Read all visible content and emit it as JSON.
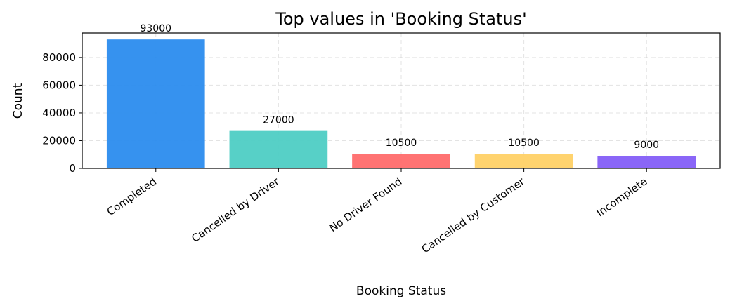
{
  "chart_data": {
    "type": "bar",
    "title": "Top values in 'Booking Status'",
    "xlabel": "Booking Status",
    "ylabel": "Count",
    "categories": [
      "Completed",
      "Cancelled by Driver",
      "No Driver Found",
      "Cancelled by Customer",
      "Incomplete"
    ],
    "values": [
      93000,
      27000,
      10500,
      10500,
      9000
    ],
    "data_labels": [
      "93000",
      "27000",
      "10500",
      "10500",
      "9000"
    ],
    "colors": [
      "#2b8cee",
      "#4ecdc4",
      "#ff6b6b",
      "#ffd166",
      "#845ef7"
    ],
    "ylim": [
      0,
      97650
    ],
    "yticks": [
      0,
      20000,
      40000,
      60000,
      80000
    ],
    "ytick_labels": [
      "0",
      "20000",
      "40000",
      "60000",
      "80000"
    ],
    "grid": true,
    "legend": false
  }
}
